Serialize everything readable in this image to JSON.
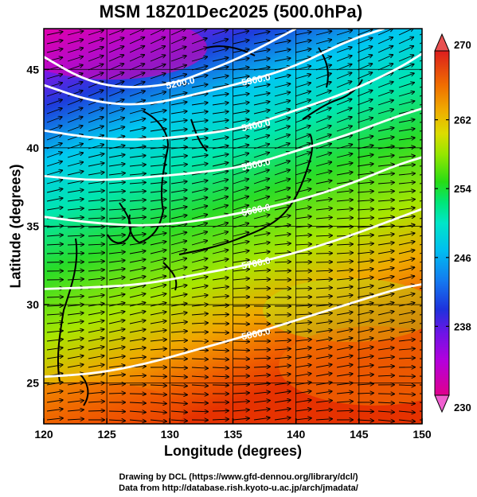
{
  "title": "MSM 18Z01Dec2025 (500.0hPa)",
  "xlabel": "Longitude (degrees)",
  "ylabel": "Latitude  (degrees)",
  "credits": [
    "Drawing by DCL (https://www.gfd-dennou.org/library/dcl/)",
    "Data from http://database.rish.kyoto-u.ac.jp/arch/jmadata/"
  ],
  "chart_data": {
    "type": "heatmap",
    "xlim": [
      120,
      150
    ],
    "ylim": [
      22.4,
      47.6
    ],
    "x_ticks": [
      120,
      125,
      130,
      135,
      140,
      145,
      150
    ],
    "y_ticks": [
      25,
      30,
      35,
      40,
      45
    ],
    "colorbar": {
      "min": 230,
      "max": 270,
      "tick_labels": [
        "270",
        "262",
        "254",
        "246",
        "238",
        "230"
      ],
      "colors": [
        "#e0008c",
        "#b400dc",
        "#6e14e6",
        "#1e32dc",
        "#1478f0",
        "#00bef0",
        "#00e6c8",
        "#00e678",
        "#28dc14",
        "#96e600",
        "#dcdc00",
        "#f0aa00",
        "#f06e00",
        "#e63c00",
        "#dc1e1e"
      ]
    },
    "height_contours": [
      {
        "label": "5200.0",
        "points": [
          [
            120,
            45.8
          ],
          [
            123,
            44.4
          ],
          [
            126,
            43.8
          ],
          [
            130,
            44.0
          ],
          [
            133,
            44.9
          ],
          [
            136,
            45.9
          ],
          [
            140,
            47.6
          ]
        ]
      },
      {
        "label": "5300.0",
        "points": [
          [
            120,
            44.0
          ],
          [
            124,
            42.9
          ],
          [
            128,
            42.7
          ],
          [
            132,
            43.4
          ],
          [
            136,
            44.2
          ],
          [
            140,
            45.2
          ],
          [
            144,
            46.8
          ],
          [
            147,
            47.6
          ]
        ]
      },
      {
        "label": "5400.0",
        "points": [
          [
            120,
            41.1
          ],
          [
            124,
            40.6
          ],
          [
            128,
            40.5
          ],
          [
            132,
            40.8
          ],
          [
            136,
            41.3
          ],
          [
            140,
            42.4
          ],
          [
            144,
            43.5
          ],
          [
            148,
            45.0
          ],
          [
            150,
            46.0
          ]
        ]
      },
      {
        "label": "5500.0",
        "points": [
          [
            120,
            38.2
          ],
          [
            124,
            37.9
          ],
          [
            128,
            38.1
          ],
          [
            132,
            38.4
          ],
          [
            136,
            38.8
          ],
          [
            140,
            39.8
          ],
          [
            144,
            40.8
          ],
          [
            148,
            42.0
          ],
          [
            150,
            42.5
          ]
        ]
      },
      {
        "label": "5600.0",
        "points": [
          [
            120,
            35.6
          ],
          [
            124,
            35.2
          ],
          [
            128,
            35.0
          ],
          [
            132,
            35.3
          ],
          [
            136,
            35.9
          ],
          [
            140,
            36.6
          ],
          [
            144,
            37.6
          ],
          [
            148,
            38.9
          ],
          [
            150,
            39.4
          ]
        ]
      },
      {
        "label": "5700.0",
        "points": [
          [
            120,
            31.0
          ],
          [
            124,
            31.1
          ],
          [
            128,
            31.3
          ],
          [
            132,
            31.9
          ],
          [
            136,
            32.5
          ],
          [
            140,
            33.3
          ],
          [
            144,
            34.3
          ],
          [
            148,
            35.5
          ],
          [
            150,
            36.1
          ]
        ]
      },
      {
        "label": "5800.0",
        "points": [
          [
            120,
            25.4
          ],
          [
            124,
            25.6
          ],
          [
            128,
            26.2
          ],
          [
            132,
            27.1
          ],
          [
            136,
            28.0
          ],
          [
            140,
            29.0
          ],
          [
            144,
            30.0
          ],
          [
            148,
            31.0
          ],
          [
            150,
            31.3
          ]
        ]
      }
    ]
  },
  "icons": {
    "colorbar_arrows": "triangle-icon"
  }
}
